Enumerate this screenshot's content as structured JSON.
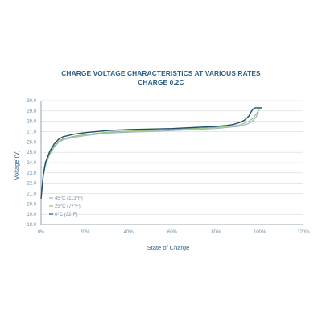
{
  "chart_data": {
    "type": "line",
    "title": "CHARGE VOLTAGE CHARACTERISTICS AT VARIOUS RATES",
    "subtitle": "CHARGE 0.2C",
    "xlabel": "State of Charge",
    "ylabel": "Voltage (V)",
    "xlim": [
      0,
      120
    ],
    "ylim": [
      18.0,
      30.0
    ],
    "x_ticks": [
      "0%",
      "20%",
      "40%",
      "60%",
      "80%",
      "100%",
      "120%"
    ],
    "y_ticks": [
      "18.0",
      "19.0",
      "20.0",
      "21.0",
      "22.0",
      "23.0",
      "24.0",
      "25.0",
      "26.0",
      "27.0",
      "28.0",
      "29.0",
      "30.0"
    ],
    "grid": "horizontal",
    "legend_position": "bottom-left",
    "series": [
      {
        "name": "45°C (113°F)",
        "color": "#9fb0ba",
        "x": [
          0,
          1,
          2,
          4,
          6,
          8,
          10,
          15,
          20,
          30,
          40,
          50,
          60,
          70,
          80,
          85,
          90,
          94,
          96,
          98,
          99,
          99.5
        ],
        "y": [
          20.5,
          22.6,
          23.7,
          24.8,
          25.5,
          25.95,
          26.2,
          26.45,
          26.6,
          26.85,
          26.95,
          27.0,
          27.1,
          27.2,
          27.3,
          27.4,
          27.5,
          27.7,
          27.9,
          28.3,
          28.7,
          28.9
        ]
      },
      {
        "name": "25°C (77°F)",
        "color": "#8bbf76",
        "x": [
          0,
          1,
          2,
          4,
          6,
          8,
          10,
          15,
          20,
          30,
          40,
          50,
          60,
          70,
          80,
          85,
          90,
          93,
          95,
          97,
          99,
          100,
          100.5
        ],
        "y": [
          20.5,
          22.7,
          23.8,
          24.9,
          25.6,
          26.05,
          26.3,
          26.55,
          26.7,
          26.95,
          27.05,
          27.1,
          27.2,
          27.3,
          27.4,
          27.5,
          27.6,
          27.8,
          28.0,
          28.3,
          28.9,
          29.2,
          29.2
        ]
      },
      {
        "name": "0°C (32°F)",
        "color": "#1f4f6b",
        "x": [
          0,
          1,
          2,
          4,
          6,
          8,
          10,
          15,
          20,
          30,
          40,
          50,
          60,
          70,
          80,
          85,
          88,
          91,
          93,
          95,
          96,
          97,
          98,
          99,
          100,
          101
        ],
        "y": [
          20.5,
          22.8,
          24.0,
          25.1,
          25.8,
          26.25,
          26.5,
          26.75,
          26.9,
          27.1,
          27.2,
          27.25,
          27.3,
          27.4,
          27.5,
          27.6,
          27.7,
          27.9,
          28.1,
          28.5,
          28.9,
          29.2,
          29.3,
          29.3,
          29.3,
          29.3
        ]
      }
    ]
  }
}
